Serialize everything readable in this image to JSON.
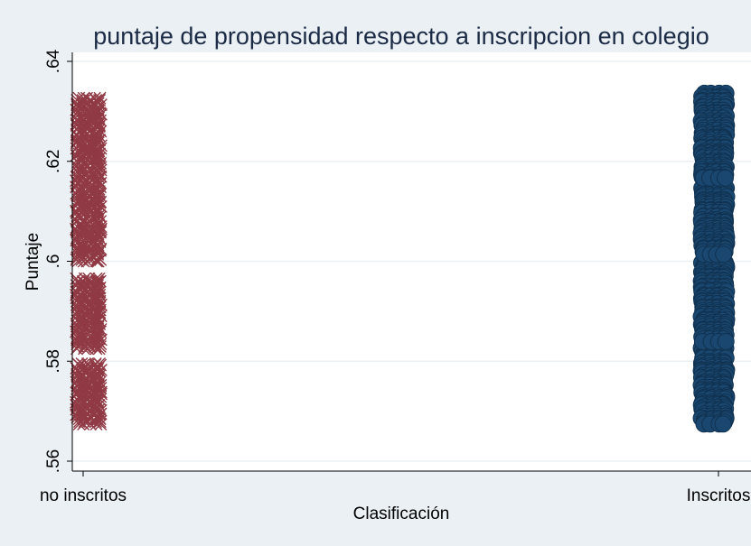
{
  "chart_data": {
    "type": "scatter",
    "title": "puntaje de propensidad respecto a inscripcion en colegio",
    "xlabel": "Clasificación",
    "ylabel": "Puntaje",
    "categories": [
      "no inscritos",
      "Inscritos"
    ],
    "ylim": [
      0.56,
      0.64
    ],
    "yticks": [
      {
        "value": 0.56,
        "label": ".56"
      },
      {
        "value": 0.58,
        "label": ".58"
      },
      {
        "value": 0.6,
        "label": ".6"
      },
      {
        "value": 0.62,
        "label": ".62"
      },
      {
        "value": 0.64,
        "label": ".64"
      }
    ],
    "grid": true,
    "series": [
      {
        "category": "no inscritos",
        "marker": "x",
        "color": "#903a45",
        "ranges": [
          [
            0.5675,
            0.5795
          ],
          [
            0.5825,
            0.5965
          ],
          [
            0.6,
            0.6145
          ],
          [
            0.615,
            0.6325
          ]
        ]
      },
      {
        "category": "Inscritos",
        "marker": "circle",
        "color": "#1a476f",
        "ranges": [
          [
            0.5675,
            0.5825
          ],
          [
            0.584,
            0.6
          ],
          [
            0.6015,
            0.6145
          ],
          [
            0.6165,
            0.6335
          ]
        ]
      }
    ]
  },
  "colors": {
    "background": "#eaf0f3",
    "plot_area": "#ffffff",
    "grid": "#eaf0f3",
    "title": "#1b2a45"
  }
}
